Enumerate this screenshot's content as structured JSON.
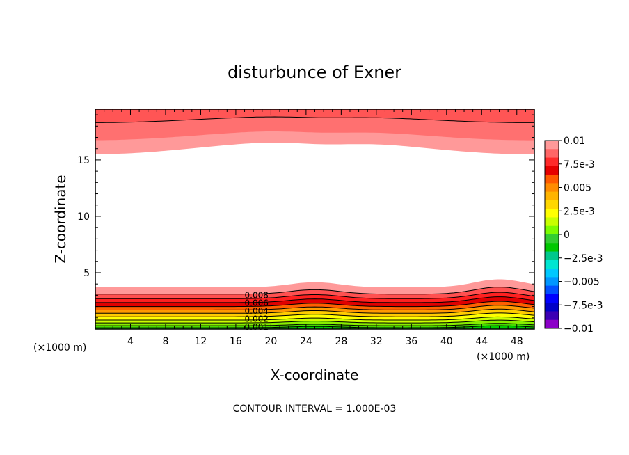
{
  "chart_data": {
    "type": "heatmap",
    "title": "disturbunce of Exner",
    "xlabel": "X-coordinate",
    "ylabel": "Z-coordinate",
    "x_unit_left": "(×1000 m)",
    "x_unit_right": "(×1000 m)",
    "xlim": [
      0,
      50
    ],
    "ylim": [
      0,
      19.5
    ],
    "x_ticks": [
      "4",
      "8",
      "12",
      "16",
      "20",
      "24",
      "28",
      "32",
      "36",
      "40",
      "44",
      "48"
    ],
    "x_tick_values": [
      4,
      8,
      12,
      16,
      20,
      24,
      28,
      32,
      36,
      40,
      44,
      48
    ],
    "y_ticks": [
      "5",
      "10",
      "15"
    ],
    "y_tick_values": [
      5,
      10,
      15
    ],
    "colorbar": {
      "labels": [
        "0.01",
        "7.5e-3",
        "0.005",
        "2.5e-3",
        "0",
        "−2.5e-3",
        "−0.005",
        "−7.5e-3",
        "−0.01"
      ],
      "colors": [
        "#ff9999",
        "#ff6666",
        "#ff2a2a",
        "#e60000",
        "#ff5a00",
        "#ff8c00",
        "#ffb400",
        "#ffd700",
        "#ffff00",
        "#c8ff00",
        "#7cfc00",
        "#32cd32",
        "#00c800",
        "#00c88c",
        "#00e6d2",
        "#00c8ff",
        "#0096ff",
        "#0050ff",
        "#0000ff",
        "#0000c8",
        "#3c00b4",
        "#8c00c8"
      ]
    },
    "contour_labels": [
      "0.008",
      "0.006",
      "0.004",
      "0.002",
      "0.001"
    ],
    "note": "CONTOUR INTERVAL = 1.000E-03",
    "bottom_bands": [
      {
        "base": 3.7,
        "color": "#ff9999"
      },
      {
        "base": 3.1,
        "color": "#ff5050"
      },
      {
        "base": 2.7,
        "color": "#ff2020"
      },
      {
        "base": 2.35,
        "color": "#e00000"
      },
      {
        "base": 2.0,
        "color": "#ff6000"
      },
      {
        "base": 1.7,
        "color": "#ff9900"
      },
      {
        "base": 1.4,
        "color": "#ffcc00"
      },
      {
        "base": 1.1,
        "color": "#ffff00"
      },
      {
        "base": 0.8,
        "color": "#ccff00"
      },
      {
        "base": 0.55,
        "color": "#88ee00"
      },
      {
        "base": 0.3,
        "color": "#44dd00"
      },
      {
        "base": 0.12,
        "color": "#00cc00"
      }
    ],
    "top_bands": [
      {
        "base": 16.1,
        "color": "#ff9999"
      },
      {
        "base": 17.2,
        "color": "#ff7070"
      },
      {
        "base": 18.6,
        "color": "#ff5555"
      }
    ]
  }
}
